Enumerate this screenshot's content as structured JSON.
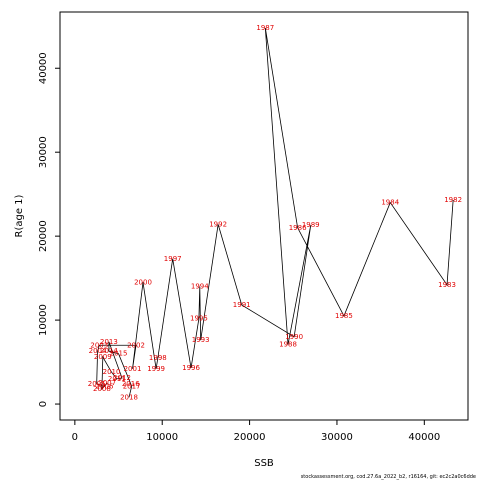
{
  "chart_data": {
    "type": "line",
    "x_label": "SSB",
    "y_label": "R(age 1)",
    "footer": "stockassessment.org, cod.27.6a_2022_b2, r16164, git: ec2c2a0c6dde",
    "labels": [
      "1982",
      "1983",
      "1984",
      "1985",
      "1986",
      "1987",
      "1988",
      "1989",
      "1990",
      "1991",
      "1992",
      "1993",
      "1994",
      "1995",
      "1996",
      "1997",
      "1998",
      "1999",
      "2000",
      "2001",
      "2002",
      "2003",
      "2004",
      "2005",
      "2006",
      "2007",
      "2008",
      "2009",
      "2010",
      "2011",
      "2012",
      "2013",
      "2014",
      "2015",
      "2016",
      "2017",
      "2018"
    ],
    "x": [
      43300,
      42600,
      36100,
      30800,
      25500,
      21800,
      24400,
      27000,
      25100,
      19100,
      16400,
      14400,
      14300,
      14200,
      13300,
      11200,
      9500,
      9300,
      7800,
      6600,
      7000,
      2800,
      2600,
      2500,
      3400,
      3700,
      3100,
      3200,
      4200,
      4800,
      5400,
      3900,
      3900,
      5000,
      6400,
      6500,
      6200
    ],
    "series": [
      {
        "name": "R(age 1)",
        "color": "#000000",
        "label_color": "#e00000",
        "values": [
          24300,
          14200,
          24000,
          10500,
          21000,
          44800,
          7100,
          21300,
          8000,
          11800,
          21400,
          7600,
          14000,
          10200,
          4300,
          17300,
          5500,
          4200,
          14500,
          4200,
          7000,
          7000,
          6300,
          2400,
          2100,
          2500,
          1800,
          5600,
          3800,
          3000,
          3100,
          7400,
          6300,
          6000,
          2400,
          2100,
          800
        ]
      }
    ],
    "xlim": [
      -1700,
      45000
    ],
    "ylim": [
      -1900,
      46700
    ],
    "xticks": [
      0,
      10000,
      20000,
      30000,
      40000
    ],
    "yticks": [
      0,
      10000,
      20000,
      30000,
      40000
    ]
  }
}
